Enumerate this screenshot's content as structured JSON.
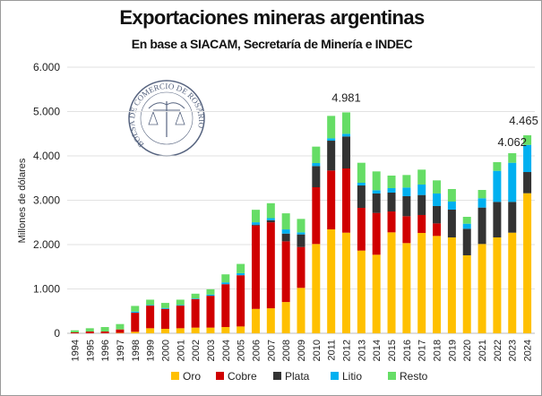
{
  "chart_data": {
    "type": "bar",
    "stacked": true,
    "title": "Exportaciones mineras argentinas",
    "subtitle": "En base a SIACAM, Secretaría de Minería e INDEC",
    "xlabel": "",
    "ylabel": "Millones de dólares",
    "ylim": [
      0,
      6000
    ],
    "yticks": [
      "0",
      "1.000",
      "2.000",
      "3.000",
      "4.000",
      "5.000",
      "6.000"
    ],
    "ytick_values": [
      0,
      1000,
      2000,
      3000,
      4000,
      5000,
      6000
    ],
    "grid": true,
    "legend_position": "bottom",
    "categories": [
      "1994",
      "1995",
      "1996",
      "1997",
      "1998",
      "1999",
      "2000",
      "2001",
      "2002",
      "2003",
      "2004",
      "2005",
      "2006",
      "2007",
      "2008",
      "2009",
      "2010",
      "2011",
      "2012",
      "2013",
      "2014",
      "2015",
      "2016",
      "2017",
      "2018",
      "2019",
      "2020",
      "2021",
      "2022",
      "2023",
      "2024"
    ],
    "series": [
      {
        "name": "Oro",
        "color": "#FFC000",
        "values": [
          0,
          0,
          0,
          10,
          34,
          114,
          101,
          114,
          128,
          128,
          141,
          154,
          550,
          564,
          705,
          1024,
          2013,
          2343,
          2269,
          1865,
          1771,
          2276,
          2034,
          2263,
          2195,
          2162,
          1758,
          2013,
          2162,
          2269,
          3158
        ]
      },
      {
        "name": "Cobre",
        "color": "#D00000",
        "values": [
          20,
          40,
          40,
          77,
          429,
          510,
          449,
          510,
          644,
          718,
          966,
          1155,
          1880,
          1939,
          1369,
          922,
          1280,
          1327,
          1448,
          963,
          943,
          471,
          606,
          404,
          283,
          0,
          0,
          0,
          0,
          0,
          0
        ]
      },
      {
        "name": "Plata",
        "color": "#333333",
        "values": [
          0,
          0,
          0,
          0,
          0,
          0,
          0,
          0,
          0,
          0,
          0,
          0,
          20,
          47,
          174,
          283,
          478,
          673,
          721,
          505,
          438,
          425,
          451,
          451,
          391,
          626,
          599,
          822,
          801,
          694,
          478
        ]
      },
      {
        "name": "Litio",
        "color": "#00B0F0",
        "values": [
          0,
          0,
          0,
          0,
          27,
          14,
          20,
          14,
          14,
          26,
          41,
          47,
          53,
          47,
          94,
          47,
          67,
          54,
          60,
          61,
          74,
          101,
          195,
          236,
          283,
          182,
          114,
          209,
          700,
          882,
          613
        ]
      },
      {
        "name": "Resto",
        "color": "#66DD66",
        "values": [
          47,
          74,
          101,
          121,
          127,
          120,
          115,
          120,
          107,
          121,
          181,
          208,
          282,
          336,
          363,
          303,
          371,
          505,
          483,
          451,
          424,
          283,
          283,
          336,
          296,
          283,
          155,
          188,
          196,
          216,
          216
        ]
      }
    ],
    "annotations": [
      {
        "category": "2012",
        "text": "4.981"
      },
      {
        "category": "2023",
        "text": "4.062"
      },
      {
        "category": "2024",
        "text": "4.465"
      }
    ]
  },
  "watermark": {
    "text": "BOLSA DE COMERCIO DE ROSARIO",
    "color": "#3a4a6a"
  }
}
